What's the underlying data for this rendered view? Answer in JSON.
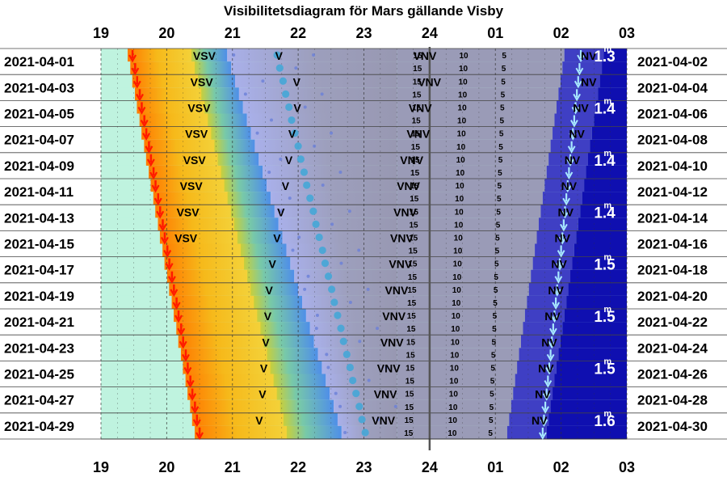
{
  "title": "Visibilitetsdiagram för Mars gällande Visby",
  "chart_data": {
    "type": "visibility-diagram",
    "title": "Visibilitetsdiagram för Mars gällande Visby",
    "x_ticks": [
      "19",
      "20",
      "21",
      "22",
      "23",
      "24",
      "01",
      "02",
      "03"
    ],
    "x_range_hours": [
      19,
      27
    ],
    "left_labels": [
      "2021-04-01",
      "2021-04-03",
      "2021-04-05",
      "2021-04-07",
      "2021-04-09",
      "2021-04-11",
      "2021-04-13",
      "2021-04-15",
      "2021-04-17",
      "2021-04-19",
      "2021-04-21",
      "2021-04-23",
      "2021-04-25",
      "2021-04-27",
      "2021-04-29"
    ],
    "right_labels": [
      "2021-04-02",
      "2021-04-04",
      "2021-04-06",
      "2021-04-08",
      "2021-04-10",
      "2021-04-12",
      "2021-04-14",
      "2021-04-16",
      "2021-04-18",
      "2021-04-20",
      "2021-04-22",
      "2021-04-24",
      "2021-04-26",
      "2021-04-28",
      "2021-04-30"
    ],
    "magnitude_labels": [
      {
        "row": 1,
        "text": "1.3"
      },
      {
        "row": 5,
        "text": "1.4"
      },
      {
        "row": 9,
        "text": "1.4"
      },
      {
        "row": 13,
        "text": "1.4"
      },
      {
        "row": 17,
        "text": "1.5"
      },
      {
        "row": 21,
        "text": "1.5"
      },
      {
        "row": 25,
        "text": "1.5"
      },
      {
        "row": 29,
        "text": "1.6"
      }
    ],
    "magnitude_superscript": "m",
    "direction_labels": {
      "vsv": "VSV",
      "v": "V",
      "vnv": "VNV",
      "nv": "NV"
    },
    "altitude_labels": [
      "15",
      "10",
      "5"
    ],
    "colors": {
      "twilight_light": "#bff3df",
      "sunset_yellow": "#f6c21a",
      "sunset_orange": "#e8780c",
      "twilight_blue": "#5aa3ea",
      "evening_periwinkle": "#a7b2ec",
      "night_gray": "#9a9bb7",
      "night_blue": "#3f3fc4",
      "deep_night": "#0f0fb0",
      "midnight_line": "#555555",
      "sunset_arrow": "#ff1a00",
      "moon_arrow": "#a8e8ff",
      "text": "#000000",
      "magnitude_text": "#ffffff"
    },
    "rows": [
      {
        "day": 1,
        "sunset": 19.48,
        "twilight": 20.4,
        "dark": 20.92,
        "nautical": 26.05,
        "dawn": 26.65,
        "vsv": 20.4,
        "v": 21.65,
        "vnv": 23.75,
        "nv": 26.3,
        "mars": 21.68,
        "moonrise": 27.25
      },
      {
        "day": 2,
        "sunset": 19.52,
        "twilight": 20.45,
        "dark": 20.98,
        "nautical": 26.02,
        "dawn": 26.62,
        "vsv": null,
        "v": null,
        "vnv": null,
        "nv": null,
        "mars": 21.72,
        "moonrise": 27.24
      },
      {
        "day": 3,
        "sunset": 19.55,
        "twilight": 20.5,
        "dark": 21.04,
        "nautical": 25.99,
        "dawn": 26.59,
        "vsv": 20.36,
        "v": 21.92,
        "vnv": 23.82,
        "nv": 26.3,
        "mars": 21.77,
        "moonrise": 27.23
      },
      {
        "day": 4,
        "sunset": 19.59,
        "twilight": 20.55,
        "dark": 21.1,
        "nautical": 25.96,
        "dawn": 26.56,
        "vsv": null,
        "v": null,
        "vnv": null,
        "nv": null,
        "mars": 21.81,
        "moonrise": 27.22
      },
      {
        "day": 5,
        "sunset": 19.62,
        "twilight": 20.6,
        "dark": 21.16,
        "nautical": 25.93,
        "dawn": 26.53,
        "vsv": 20.32,
        "v": 21.93,
        "vnv": 23.68,
        "nv": 26.18,
        "mars": 21.86,
        "moonrise": 27.21
      },
      {
        "day": 6,
        "sunset": 19.66,
        "twilight": 20.65,
        "dark": 21.22,
        "nautical": 25.9,
        "dawn": 26.5,
        "vsv": null,
        "v": null,
        "vnv": null,
        "nv": null,
        "mars": 21.9,
        "moonrise": 27.2
      },
      {
        "day": 7,
        "sunset": 19.69,
        "twilight": 20.7,
        "dark": 21.28,
        "nautical": 25.87,
        "dawn": 26.47,
        "vsv": 20.28,
        "v": 21.85,
        "vnv": 23.65,
        "nv": 26.12,
        "mars": 21.95,
        "moonrise": 27.19
      },
      {
        "day": 8,
        "sunset": 19.73,
        "twilight": 20.75,
        "dark": 21.34,
        "nautical": 25.84,
        "dawn": 26.44,
        "vsv": null,
        "v": null,
        "vnv": null,
        "nv": null,
        "mars": 22.0,
        "moonrise": 27.18
      },
      {
        "day": 9,
        "sunset": 19.76,
        "twilight": 20.8,
        "dark": 21.4,
        "nautical": 25.81,
        "dawn": 26.41,
        "vsv": 20.25,
        "v": 21.8,
        "vnv": 23.55,
        "nv": 26.05,
        "mars": 22.04,
        "moonrise": 27.17
      },
      {
        "day": 10,
        "sunset": 19.8,
        "twilight": 20.85,
        "dark": 21.46,
        "nautical": 25.78,
        "dawn": 26.38,
        "vsv": null,
        "v": null,
        "vnv": null,
        "nv": null,
        "mars": 22.09,
        "moonrise": 27.16
      },
      {
        "day": 11,
        "sunset": 19.83,
        "twilight": 20.9,
        "dark": 21.52,
        "nautical": 25.75,
        "dawn": 26.35,
        "vsv": 20.2,
        "v": 21.75,
        "vnv": 23.5,
        "nv": 26.0,
        "mars": 22.13,
        "moonrise": 27.15
      },
      {
        "day": 12,
        "sunset": 19.87,
        "twilight": 20.95,
        "dark": 21.58,
        "nautical": 25.72,
        "dawn": 26.32,
        "vsv": null,
        "v": null,
        "vnv": null,
        "nv": null,
        "mars": 22.18,
        "moonrise": 27.14
      },
      {
        "day": 13,
        "sunset": 19.9,
        "twilight": 21.0,
        "dark": 21.64,
        "nautical": 25.69,
        "dawn": 26.29,
        "vsv": 20.15,
        "v": 21.68,
        "vnv": 23.45,
        "nv": 25.95,
        "mars": 22.23,
        "moonrise": 27.13
      },
      {
        "day": 14,
        "sunset": 19.94,
        "twilight": 21.05,
        "dark": 21.7,
        "nautical": 25.66,
        "dawn": 26.26,
        "vsv": null,
        "v": null,
        "vnv": null,
        "nv": null,
        "mars": 22.27,
        "moonrise": 27.12
      },
      {
        "day": 15,
        "sunset": 19.97,
        "twilight": 21.1,
        "dark": 21.76,
        "nautical": 25.63,
        "dawn": 26.23,
        "vsv": 20.12,
        "v": 21.62,
        "vnv": 23.4,
        "nv": 25.9,
        "mars": 22.32,
        "moonrise": 27.11
      },
      {
        "day": 16,
        "sunset": 20.01,
        "twilight": 21.15,
        "dark": 21.82,
        "nautical": 25.6,
        "dawn": 26.2,
        "vsv": null,
        "v": null,
        "vnv": null,
        "nv": null,
        "mars": 22.37,
        "moonrise": 27.1
      },
      {
        "day": 17,
        "sunset": 20.04,
        "twilight": 21.2,
        "dark": 21.88,
        "nautical": 25.57,
        "dawn": 26.17,
        "vsv": null,
        "v": 21.55,
        "vnv": 23.38,
        "nv": 25.85,
        "mars": 22.41,
        "moonrise": 27.09
      },
      {
        "day": 18,
        "sunset": 20.08,
        "twilight": 21.25,
        "dark": 21.94,
        "nautical": 25.54,
        "dawn": 26.14,
        "vsv": null,
        "v": null,
        "vnv": null,
        "nv": null,
        "mars": 22.46,
        "moonrise": 27.08
      },
      {
        "day": 19,
        "sunset": 20.11,
        "twilight": 21.3,
        "dark": 22.0,
        "nautical": 25.51,
        "dawn": 26.11,
        "vsv": null,
        "v": 21.5,
        "vnv": 23.32,
        "nv": 25.8,
        "mars": 22.51,
        "moonrise": 27.07
      },
      {
        "day": 20,
        "sunset": 20.15,
        "twilight": 21.35,
        "dark": 22.06,
        "nautical": 25.48,
        "dawn": 26.08,
        "vsv": null,
        "v": null,
        "vnv": null,
        "nv": null,
        "mars": 22.55,
        "moonrise": 27.06
      },
      {
        "day": 21,
        "sunset": 20.18,
        "twilight": 21.4,
        "dark": 22.12,
        "nautical": 25.45,
        "dawn": 26.05,
        "vsv": null,
        "v": 21.48,
        "vnv": 23.28,
        "nv": 25.75,
        "mars": 22.6,
        "moonrise": 27.05
      },
      {
        "day": 22,
        "sunset": 20.22,
        "twilight": 21.45,
        "dark": 22.18,
        "nautical": 25.42,
        "dawn": 26.02,
        "vsv": null,
        "v": null,
        "vnv": null,
        "nv": null,
        "mars": 22.65,
        "moonrise": 27.04
      },
      {
        "day": 23,
        "sunset": 20.25,
        "twilight": 21.5,
        "dark": 22.24,
        "nautical": 25.39,
        "dawn": 25.99,
        "vsv": null,
        "v": 21.45,
        "vnv": 23.25,
        "nv": 25.7,
        "mars": 22.69,
        "moonrise": 27.03
      },
      {
        "day": 24,
        "sunset": 20.29,
        "twilight": 21.55,
        "dark": 22.3,
        "nautical": 25.36,
        "dawn": 25.96,
        "vsv": null,
        "v": null,
        "vnv": null,
        "nv": null,
        "mars": 22.74,
        "moonrise": 27.02
      },
      {
        "day": 25,
        "sunset": 20.32,
        "twilight": 21.6,
        "dark": 22.36,
        "nautical": 25.33,
        "dawn": 25.93,
        "vsv": null,
        "v": 21.42,
        "vnv": 23.2,
        "nv": 25.65,
        "mars": 22.79,
        "moonrise": 27.01
      },
      {
        "day": 26,
        "sunset": 20.36,
        "twilight": 21.65,
        "dark": 22.42,
        "nautical": 25.3,
        "dawn": 25.9,
        "vsv": null,
        "v": null,
        "vnv": null,
        "nv": null,
        "mars": 22.83,
        "moonrise": 27.0
      },
      {
        "day": 27,
        "sunset": 20.39,
        "twilight": 21.7,
        "dark": 22.48,
        "nautical": 25.27,
        "dawn": 25.87,
        "vsv": null,
        "v": 21.4,
        "vnv": 23.15,
        "nv": 25.6,
        "mars": 22.88,
        "moonrise": 26.99
      },
      {
        "day": 28,
        "sunset": 20.43,
        "twilight": 21.75,
        "dark": 22.54,
        "nautical": 25.24,
        "dawn": 25.84,
        "vsv": null,
        "v": null,
        "vnv": null,
        "nv": null,
        "mars": 22.93,
        "moonrise": 26.98
      },
      {
        "day": 29,
        "sunset": 20.46,
        "twilight": 21.8,
        "dark": 22.6,
        "nautical": 25.21,
        "dawn": 25.81,
        "vsv": null,
        "v": 21.35,
        "vnv": 23.12,
        "nv": 25.55,
        "mars": 22.97,
        "moonrise": 26.97
      },
      {
        "day": 30,
        "sunset": 20.5,
        "twilight": 21.85,
        "dark": 22.66,
        "nautical": 25.18,
        "dawn": 25.78,
        "vsv": null,
        "v": null,
        "vnv": null,
        "nv": null,
        "mars": 23.02,
        "moonrise": 26.96
      }
    ]
  }
}
